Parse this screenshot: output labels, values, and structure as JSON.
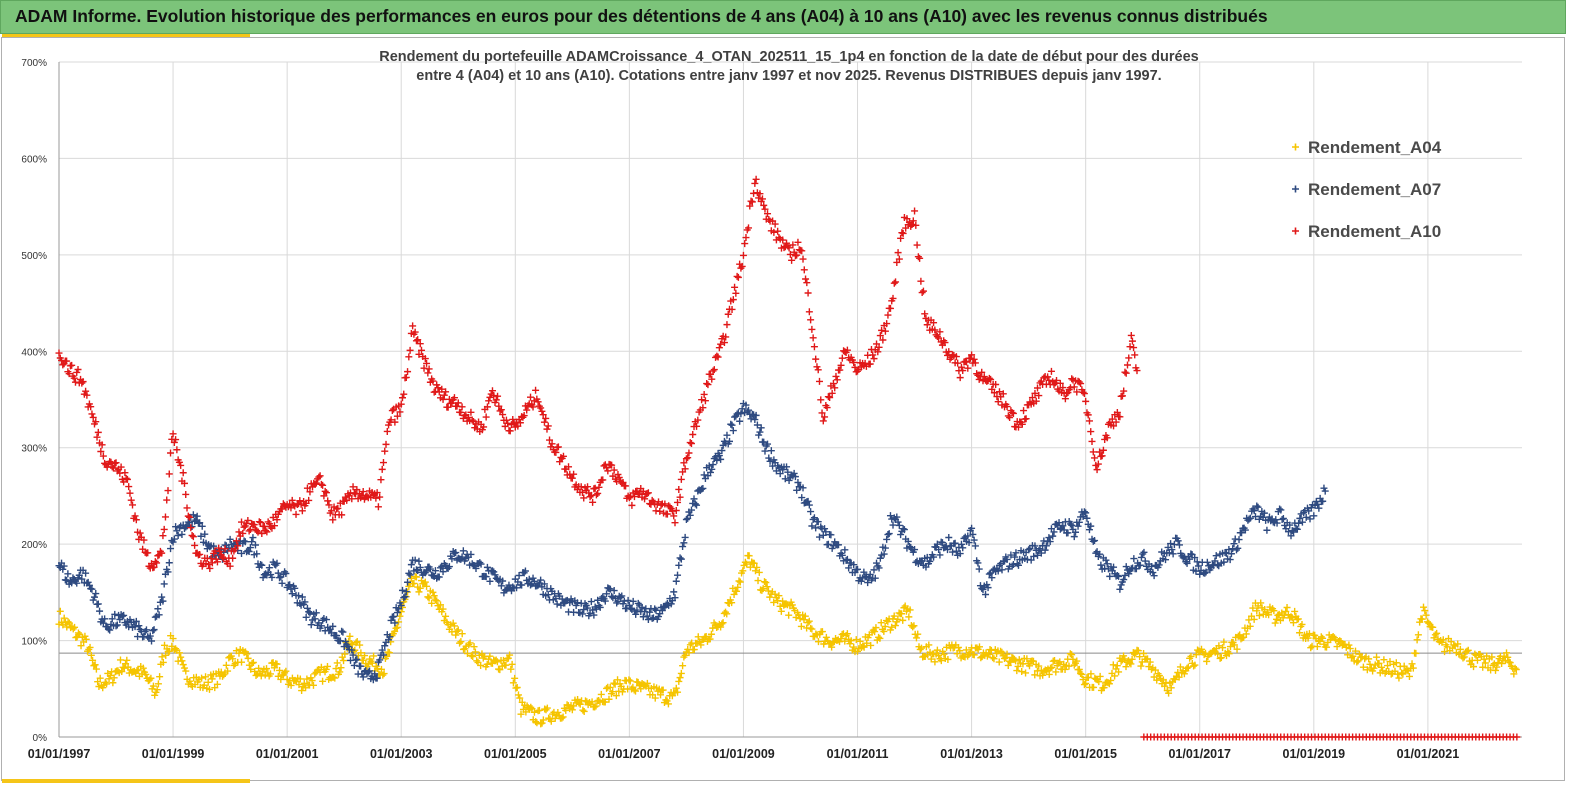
{
  "header": {
    "title": "ADAM Informe. Evolution historique des performances en euros pour des détentions de 4 ans (A04) à 10 ans (A10) avec les revenus connus distribués"
  },
  "chart_data": {
    "type": "scatter",
    "title_line1": "Rendement du portefeuille ADAMCroissance_4_OTAN_202511_15_1p4  en fonction de la date de début pour des durées",
    "title_line2": "entre 4 (A04) et 10 ans (A10). Cotations entre janv 1997 et nov 2025. Revenus DISTRIBUES depuis janv 1997.",
    "ylim": [
      0,
      700
    ],
    "xlim": [
      1997.0,
      2022.65
    ],
    "y_ticks": [
      "0%",
      "100%",
      "200%",
      "300%",
      "400%",
      "500%",
      "600%",
      "700%"
    ],
    "x_ticks": [
      "01/01/1997",
      "01/01/1999",
      "01/01/2001",
      "01/01/2003",
      "01/01/2005",
      "01/01/2007",
      "01/01/2009",
      "01/01/2011",
      "01/01/2013",
      "01/01/2015",
      "01/01/2017",
      "01/01/2019",
      "01/01/2021"
    ],
    "reference_line": 87,
    "grid": "vertical and horizontal",
    "legend_position": "top-right",
    "marker": "+",
    "series": [
      {
        "name": "Rendement_A04",
        "color": "#f5c400",
        "points": [
          [
            1997.0,
            125
          ],
          [
            1997.25,
            110
          ],
          [
            1997.5,
            95
          ],
          [
            1997.7,
            55
          ],
          [
            1997.9,
            60
          ],
          [
            1998.1,
            75
          ],
          [
            1998.3,
            70
          ],
          [
            1998.5,
            65
          ],
          [
            1998.7,
            45
          ],
          [
            1998.85,
            90
          ],
          [
            1999.0,
            100
          ],
          [
            1999.2,
            65
          ],
          [
            1999.5,
            55
          ],
          [
            1999.8,
            60
          ],
          [
            2000.0,
            80
          ],
          [
            2000.2,
            85
          ],
          [
            2000.5,
            65
          ],
          [
            2000.8,
            70
          ],
          [
            2001.0,
            60
          ],
          [
            2001.3,
            55
          ],
          [
            2001.6,
            65
          ],
          [
            2001.9,
            70
          ],
          [
            2002.1,
            100
          ],
          [
            2002.4,
            80
          ],
          [
            2002.7,
            70
          ],
          [
            2003.0,
            130
          ],
          [
            2003.2,
            160
          ],
          [
            2003.4,
            155
          ],
          [
            2003.6,
            140
          ],
          [
            2003.8,
            120
          ],
          [
            2004.0,
            105
          ],
          [
            2004.3,
            85
          ],
          [
            2004.6,
            75
          ],
          [
            2004.9,
            80
          ],
          [
            2005.1,
            30
          ],
          [
            2005.4,
            20
          ],
          [
            2005.7,
            25
          ],
          [
            2006.0,
            30
          ],
          [
            2006.3,
            35
          ],
          [
            2006.6,
            45
          ],
          [
            2006.9,
            55
          ],
          [
            2007.2,
            50
          ],
          [
            2007.5,
            45
          ],
          [
            2007.8,
            40
          ],
          [
            2008.0,
            90
          ],
          [
            2008.3,
            100
          ],
          [
            2008.6,
            120
          ],
          [
            2008.9,
            160
          ],
          [
            2009.1,
            185
          ],
          [
            2009.3,
            160
          ],
          [
            2009.6,
            140
          ],
          [
            2009.9,
            130
          ],
          [
            2010.2,
            110
          ],
          [
            2010.5,
            100
          ],
          [
            2010.8,
            100
          ],
          [
            2011.0,
            95
          ],
          [
            2011.3,
            105
          ],
          [
            2011.6,
            120
          ],
          [
            2011.9,
            130
          ],
          [
            2012.1,
            90
          ],
          [
            2012.4,
            85
          ],
          [
            2012.7,
            90
          ],
          [
            2013.0,
            90
          ],
          [
            2013.3,
            85
          ],
          [
            2013.6,
            80
          ],
          [
            2013.9,
            75
          ],
          [
            2014.2,
            70
          ],
          [
            2014.5,
            75
          ],
          [
            2014.8,
            80
          ],
          [
            2015.0,
            60
          ],
          [
            2015.3,
            55
          ],
          [
            2015.6,
            75
          ],
          [
            2015.9,
            85
          ],
          [
            2016.2,
            70
          ],
          [
            2016.5,
            50
          ],
          [
            2016.8,
            80
          ],
          [
            2017.1,
            85
          ],
          [
            2017.4,
            90
          ],
          [
            2017.7,
            100
          ],
          [
            2018.0,
            135
          ],
          [
            2018.3,
            125
          ],
          [
            2018.6,
            130
          ],
          [
            2018.9,
            100
          ],
          [
            2019.2,
            100
          ],
          [
            2019.5,
            95
          ],
          [
            2019.8,
            80
          ],
          [
            2020.1,
            75
          ],
          [
            2020.4,
            70
          ],
          [
            2020.7,
            65
          ],
          [
            2020.9,
            130
          ],
          [
            2021.2,
            95
          ],
          [
            2021.5,
            95
          ],
          [
            2021.8,
            80
          ],
          [
            2022.1,
            75
          ],
          [
            2022.4,
            80
          ],
          [
            2022.55,
            70
          ]
        ]
      },
      {
        "name": "Rendement_A07",
        "color": "#2e4a80",
        "points": [
          [
            1997.0,
            180
          ],
          [
            1997.2,
            160
          ],
          [
            1997.4,
            170
          ],
          [
            1997.6,
            150
          ],
          [
            1997.8,
            115
          ],
          [
            1998.0,
            120
          ],
          [
            1998.2,
            120
          ],
          [
            1998.4,
            110
          ],
          [
            1998.6,
            100
          ],
          [
            1998.8,
            140
          ],
          [
            1999.0,
            210
          ],
          [
            1999.2,
            220
          ],
          [
            1999.4,
            225
          ],
          [
            1999.6,
            200
          ],
          [
            1999.8,
            185
          ],
          [
            2000.0,
            200
          ],
          [
            2000.2,
            195
          ],
          [
            2000.4,
            200
          ],
          [
            2000.6,
            170
          ],
          [
            2000.8,
            175
          ],
          [
            2001.0,
            160
          ],
          [
            2001.2,
            145
          ],
          [
            2001.4,
            125
          ],
          [
            2001.6,
            120
          ],
          [
            2001.8,
            110
          ],
          [
            2002.0,
            100
          ],
          [
            2002.2,
            75
          ],
          [
            2002.4,
            60
          ],
          [
            2002.6,
            70
          ],
          [
            2002.8,
            110
          ],
          [
            2003.0,
            140
          ],
          [
            2003.2,
            180
          ],
          [
            2003.4,
            175
          ],
          [
            2003.6,
            170
          ],
          [
            2003.8,
            180
          ],
          [
            2004.0,
            190
          ],
          [
            2004.2,
            185
          ],
          [
            2004.4,
            175
          ],
          [
            2004.6,
            165
          ],
          [
            2004.8,
            155
          ],
          [
            2005.0,
            160
          ],
          [
            2005.2,
            165
          ],
          [
            2005.4,
            160
          ],
          [
            2005.6,
            150
          ],
          [
            2005.8,
            140
          ],
          [
            2006.0,
            135
          ],
          [
            2006.2,
            130
          ],
          [
            2006.4,
            135
          ],
          [
            2006.6,
            150
          ],
          [
            2006.8,
            145
          ],
          [
            2007.0,
            135
          ],
          [
            2007.2,
            130
          ],
          [
            2007.4,
            125
          ],
          [
            2007.6,
            130
          ],
          [
            2007.8,
            150
          ],
          [
            2008.0,
            220
          ],
          [
            2008.2,
            250
          ],
          [
            2008.4,
            280
          ],
          [
            2008.6,
            290
          ],
          [
            2008.8,
            320
          ],
          [
            2009.0,
            340
          ],
          [
            2009.2,
            330
          ],
          [
            2009.4,
            300
          ],
          [
            2009.6,
            280
          ],
          [
            2009.8,
            270
          ],
          [
            2010.0,
            260
          ],
          [
            2010.2,
            225
          ],
          [
            2010.4,
            210
          ],
          [
            2010.6,
            200
          ],
          [
            2010.8,
            185
          ],
          [
            2011.0,
            170
          ],
          [
            2011.2,
            160
          ],
          [
            2011.4,
            180
          ],
          [
            2011.6,
            230
          ],
          [
            2011.8,
            210
          ],
          [
            2012.0,
            190
          ],
          [
            2012.2,
            180
          ],
          [
            2012.4,
            195
          ],
          [
            2012.6,
            200
          ],
          [
            2012.8,
            190
          ],
          [
            2013.0,
            215
          ],
          [
            2013.2,
            150
          ],
          [
            2013.4,
            170
          ],
          [
            2013.6,
            180
          ],
          [
            2013.8,
            185
          ],
          [
            2014.0,
            190
          ],
          [
            2014.2,
            195
          ],
          [
            2014.4,
            210
          ],
          [
            2014.6,
            220
          ],
          [
            2014.8,
            215
          ],
          [
            2015.0,
            235
          ],
          [
            2015.2,
            185
          ],
          [
            2015.4,
            175
          ],
          [
            2015.6,
            160
          ],
          [
            2015.8,
            180
          ],
          [
            2016.0,
            185
          ],
          [
            2016.2,
            175
          ],
          [
            2016.4,
            190
          ],
          [
            2016.6,
            200
          ],
          [
            2016.8,
            185
          ],
          [
            2017.0,
            175
          ],
          [
            2017.2,
            180
          ],
          [
            2017.4,
            185
          ],
          [
            2017.6,
            195
          ],
          [
            2017.8,
            220
          ],
          [
            2018.0,
            235
          ],
          [
            2018.2,
            220
          ],
          [
            2018.4,
            230
          ],
          [
            2018.6,
            215
          ],
          [
            2018.8,
            225
          ],
          [
            2019.0,
            235
          ],
          [
            2019.2,
            255
          ]
        ]
      },
      {
        "name": "Rendement_A10",
        "color": "#e01818",
        "points": [
          [
            1997.0,
            400
          ],
          [
            1997.2,
            380
          ],
          [
            1997.4,
            370
          ],
          [
            1997.6,
            330
          ],
          [
            1997.8,
            290
          ],
          [
            1998.0,
            280
          ],
          [
            1998.2,
            265
          ],
          [
            1998.4,
            210
          ],
          [
            1998.6,
            180
          ],
          [
            1998.8,
            190
          ],
          [
            1999.0,
            315
          ],
          [
            1999.2,
            260
          ],
          [
            1999.4,
            190
          ],
          [
            1999.6,
            180
          ],
          [
            1999.8,
            190
          ],
          [
            2000.0,
            185
          ],
          [
            2000.2,
            215
          ],
          [
            2000.4,
            220
          ],
          [
            2000.6,
            215
          ],
          [
            2000.8,
            225
          ],
          [
            2001.0,
            240
          ],
          [
            2001.2,
            235
          ],
          [
            2001.4,
            255
          ],
          [
            2001.6,
            265
          ],
          [
            2001.8,
            230
          ],
          [
            2002.0,
            240
          ],
          [
            2002.2,
            255
          ],
          [
            2002.4,
            250
          ],
          [
            2002.6,
            245
          ],
          [
            2002.8,
            330
          ],
          [
            2003.0,
            340
          ],
          [
            2003.2,
            420
          ],
          [
            2003.4,
            390
          ],
          [
            2003.6,
            360
          ],
          [
            2003.8,
            350
          ],
          [
            2004.0,
            345
          ],
          [
            2004.2,
            330
          ],
          [
            2004.4,
            320
          ],
          [
            2004.6,
            360
          ],
          [
            2004.8,
            330
          ],
          [
            2005.0,
            320
          ],
          [
            2005.2,
            340
          ],
          [
            2005.4,
            355
          ],
          [
            2005.6,
            310
          ],
          [
            2005.8,
            290
          ],
          [
            2006.0,
            270
          ],
          [
            2006.2,
            255
          ],
          [
            2006.4,
            250
          ],
          [
            2006.6,
            285
          ],
          [
            2006.8,
            270
          ],
          [
            2007.0,
            245
          ],
          [
            2007.2,
            255
          ],
          [
            2007.4,
            245
          ],
          [
            2007.6,
            235
          ],
          [
            2007.8,
            230
          ],
          [
            2008.0,
            290
          ],
          [
            2008.2,
            330
          ],
          [
            2008.4,
            370
          ],
          [
            2008.6,
            400
          ],
          [
            2008.8,
            450
          ],
          [
            2009.0,
            500
          ],
          [
            2009.2,
            580
          ],
          [
            2009.4,
            540
          ],
          [
            2009.6,
            520
          ],
          [
            2009.8,
            500
          ],
          [
            2010.0,
            510
          ],
          [
            2010.2,
            430
          ],
          [
            2010.4,
            330
          ],
          [
            2010.6,
            370
          ],
          [
            2010.8,
            400
          ],
          [
            2011.0,
            380
          ],
          [
            2011.2,
            390
          ],
          [
            2011.4,
            410
          ],
          [
            2011.6,
            450
          ],
          [
            2011.8,
            530
          ],
          [
            2012.0,
            540
          ],
          [
            2012.2,
            430
          ],
          [
            2012.4,
            420
          ],
          [
            2012.6,
            400
          ],
          [
            2012.8,
            380
          ],
          [
            2013.0,
            395
          ],
          [
            2013.2,
            370
          ],
          [
            2013.4,
            360
          ],
          [
            2013.6,
            345
          ],
          [
            2013.8,
            325
          ],
          [
            2014.0,
            340
          ],
          [
            2014.2,
            360
          ],
          [
            2014.4,
            375
          ],
          [
            2014.6,
            355
          ],
          [
            2014.8,
            370
          ],
          [
            2015.0,
            350
          ],
          [
            2015.2,
            280
          ],
          [
            2015.4,
            320
          ],
          [
            2015.6,
            340
          ],
          [
            2015.8,
            410
          ],
          [
            2015.9,
            380
          ]
        ]
      }
    ]
  }
}
